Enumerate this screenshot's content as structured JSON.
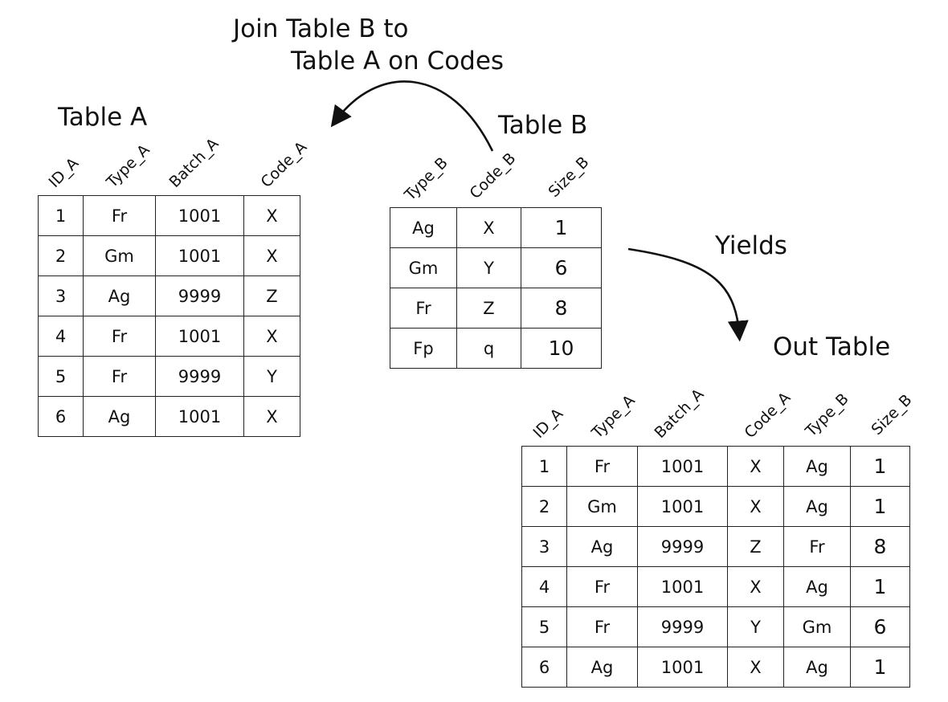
{
  "note_join_line1": "Join Table B to",
  "note_join_line2": "Table A on Codes",
  "note_yields": "Yields",
  "table_a": {
    "title": "Table A",
    "headers": [
      "ID_A",
      "Type_A",
      "Batch_A",
      "Code_A"
    ],
    "rows": [
      [
        "1",
        "Fr",
        "1001",
        "X"
      ],
      [
        "2",
        "Gm",
        "1001",
        "X"
      ],
      [
        "3",
        "Ag",
        "9999",
        "Z"
      ],
      [
        "4",
        "Fr",
        "1001",
        "X"
      ],
      [
        "5",
        "Fr",
        "9999",
        "Y"
      ],
      [
        "6",
        "Ag",
        "1001",
        "X"
      ]
    ]
  },
  "table_b": {
    "title": "Table B",
    "headers": [
      "Type_B",
      "Code_B",
      "Size_B"
    ],
    "rows": [
      [
        "Ag",
        "X",
        "1"
      ],
      [
        "Gm",
        "Y",
        "6"
      ],
      [
        "Fr",
        "Z",
        "8"
      ],
      [
        "Fp",
        "q",
        "10"
      ]
    ]
  },
  "out_table": {
    "title": "Out Table",
    "headers": [
      "ID_A",
      "Type_A",
      "Batch_A",
      "Code_A",
      "Type_B",
      "Size_B"
    ],
    "rows": [
      [
        "1",
        "Fr",
        "1001",
        "X",
        "Ag",
        "1"
      ],
      [
        "2",
        "Gm",
        "1001",
        "X",
        "Ag",
        "1"
      ],
      [
        "3",
        "Ag",
        "9999",
        "Z",
        "Fr",
        "8"
      ],
      [
        "4",
        "Fr",
        "1001",
        "X",
        "Ag",
        "1"
      ],
      [
        "5",
        "Fr",
        "9999",
        "Y",
        "Gm",
        "6"
      ],
      [
        "6",
        "Ag",
        "1001",
        "X",
        "Ag",
        "1"
      ]
    ]
  }
}
